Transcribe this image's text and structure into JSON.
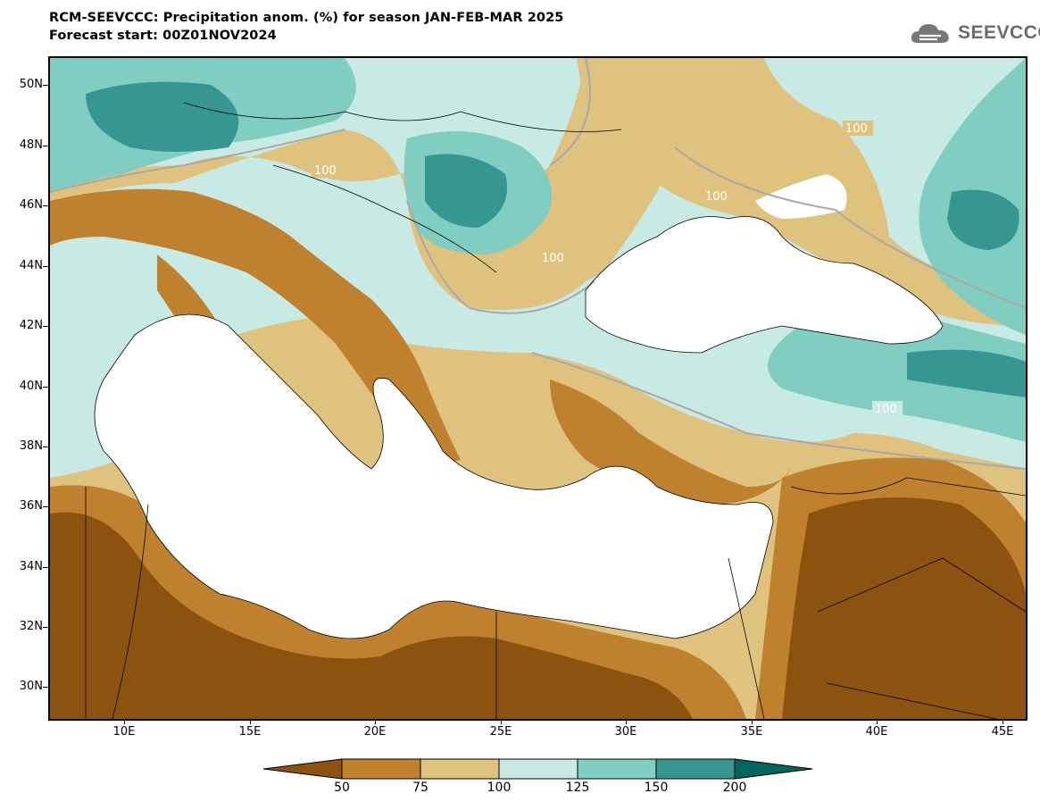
{
  "header": {
    "title_line1": "RCM-SEEVCCC: Precipitation anom. (%) for season JAN-FEB-MAR 2025",
    "title_line2": "Forecast start: 00Z01NOV2024"
  },
  "logo": {
    "text": "SEEVCCC",
    "icon": "cloud-icon"
  },
  "map": {
    "variable": "Precipitation anomaly",
    "unit": "%",
    "season": "JAN-FEB-MAR 2025",
    "forecast_start": "00Z01NOV2024",
    "lat_labels": [
      "50N",
      "48N",
      "46N",
      "44N",
      "42N",
      "40N",
      "38N",
      "36N",
      "34N",
      "32N",
      "30N"
    ],
    "lon_labels": [
      "10E",
      "15E",
      "20E",
      "25E",
      "30E",
      "35E",
      "40E",
      "45E"
    ],
    "contour_label": "100",
    "background_water_color": "#ffffff"
  },
  "colorbar": {
    "boundaries": [
      "50",
      "75",
      "100",
      "125",
      "150",
      "200"
    ],
    "colors": [
      "#8c5210",
      "#bf812d",
      "#dfc27d",
      "#c7eae5",
      "#80cdc1",
      "#35978f",
      "#01665e"
    ]
  }
}
